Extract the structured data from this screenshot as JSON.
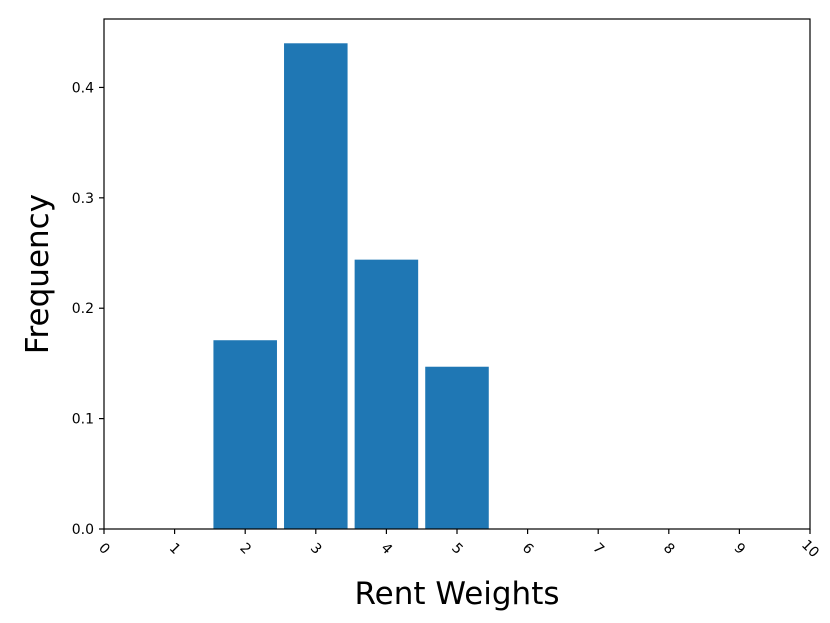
{
  "chart_data": {
    "type": "bar",
    "title": "",
    "xlabel": "Rent Weights",
    "ylabel": "Frequency",
    "x": [
      2,
      3,
      4,
      5
    ],
    "values": [
      0.171,
      0.44,
      0.244,
      0.147
    ],
    "bar_width": 0.9,
    "xlim": [
      0,
      10
    ],
    "ylim": [
      0,
      0.462
    ],
    "xticks": [
      0,
      1,
      2,
      3,
      4,
      5,
      6,
      7,
      8,
      9,
      10
    ],
    "xtick_labels": [
      "0",
      "1",
      "2",
      "3",
      "4",
      "5",
      "6",
      "7",
      "8",
      "9",
      "10"
    ],
    "yticks": [
      0.0,
      0.1,
      0.2,
      0.3,
      0.4
    ],
    "ytick_labels": [
      "0.0",
      "0.1",
      "0.2",
      "0.3",
      "0.4"
    ],
    "xtick_rotation_deg": 45,
    "grid": false,
    "legend": null,
    "bar_color": "#1f77b4"
  }
}
